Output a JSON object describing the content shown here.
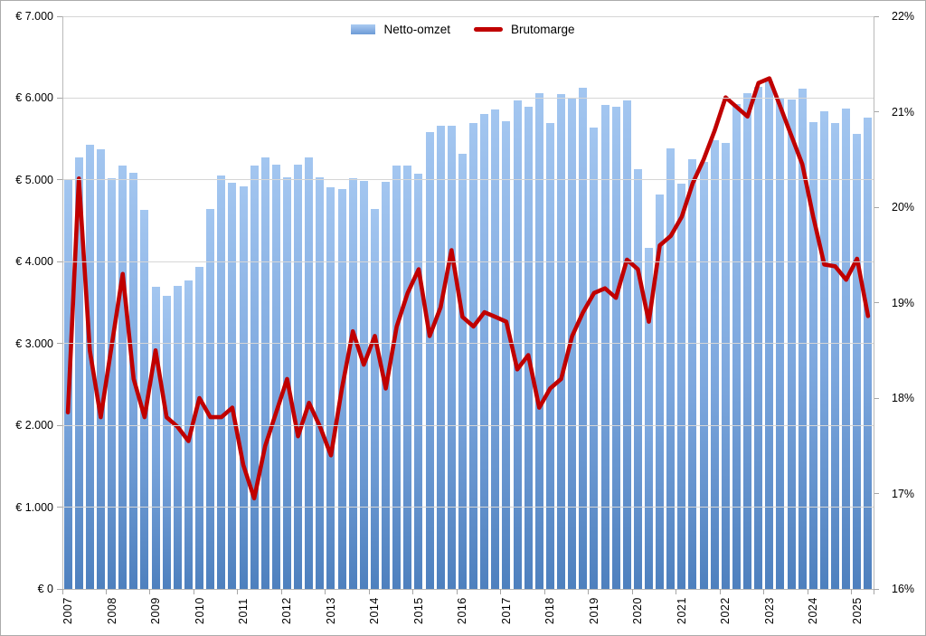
{
  "chart_data": {
    "type": "bar+line",
    "title": "",
    "legend": {
      "bar_label": "Netto-omzet",
      "line_label": "Brutomarge"
    },
    "categories_years": [
      "2007",
      "2008",
      "2009",
      "2010",
      "2011",
      "2012",
      "2013",
      "2014",
      "2015",
      "2016",
      "2017",
      "2018",
      "2019",
      "2020",
      "2021",
      "2022",
      "2023",
      "2024",
      "2025"
    ],
    "x_note": "quarterly data, 4 bars per year, 2025 has only Q1-Q2 (74 points total)",
    "series": [
      {
        "name": "Netto-omzet",
        "type": "bar",
        "axis": "left",
        "unit": "EUR million, axis formatted as € x.000",
        "values": [
          5000,
          5280,
          5430,
          5370,
          5020,
          5180,
          5090,
          4630,
          3690,
          3580,
          3710,
          3770,
          3940,
          4640,
          5050,
          4970,
          4920,
          5170,
          5270,
          5190,
          5030,
          5190,
          5280,
          5030,
          4910,
          4890,
          5020,
          4990,
          4650,
          4980,
          5180,
          5170,
          5080,
          5580,
          5660,
          5660,
          5320,
          5690,
          5810,
          5860,
          5720,
          5970,
          5890,
          6060,
          5690,
          6050,
          5990,
          6130,
          5640,
          5920,
          5890,
          5970,
          5130,
          4170,
          4820,
          5390,
          4950,
          5250,
          5220,
          5480,
          5450,
          5930,
          6060,
          6140,
          6200,
          6000,
          5980,
          6110,
          5710,
          5840,
          5700,
          5870,
          5560,
          5760
        ]
      },
      {
        "name": "Brutomarge",
        "type": "line",
        "axis": "right",
        "unit": "percent",
        "values": [
          17.85,
          20.3,
          18.5,
          17.8,
          18.55,
          19.3,
          18.2,
          17.8,
          18.5,
          17.8,
          17.7,
          17.55,
          18.0,
          17.8,
          17.8,
          17.9,
          17.3,
          16.95,
          17.5,
          17.85,
          18.2,
          17.6,
          17.95,
          17.7,
          17.4,
          18.1,
          18.7,
          18.35,
          18.65,
          18.1,
          18.75,
          19.1,
          19.35,
          18.65,
          18.95,
          19.55,
          18.85,
          18.75,
          18.9,
          18.85,
          18.8,
          18.3,
          18.45,
          17.9,
          18.1,
          18.2,
          18.65,
          18.9,
          19.1,
          19.15,
          19.05,
          19.45,
          19.35,
          18.8,
          19.6,
          19.7,
          19.9,
          20.25,
          20.5,
          20.8,
          21.15,
          21.05,
          20.95,
          21.3,
          21.35,
          21.05,
          20.75,
          20.45,
          19.9,
          19.4,
          19.38,
          19.24,
          19.46,
          18.86
        ]
      }
    ],
    "y_left": {
      "min": 0,
      "max": 7000,
      "step": 1000,
      "tick_labels_top_to_bottom": [
        "€ 7.000",
        "€ 6.000",
        "€ 5.000",
        "€ 4.000",
        "€ 3.000",
        "€ 2.000",
        "€ 1.000",
        "€ 0"
      ]
    },
    "y_right": {
      "min": 16,
      "max": 22,
      "step": 1,
      "tick_labels_top_to_bottom": [
        "22%",
        "21%",
        "20%",
        "19%",
        "18%",
        "17%",
        "16%"
      ]
    },
    "grid": "horizontal gridlines at left-axis steps only",
    "legend_position": "top-center",
    "colors": {
      "bar_top": "#a3c6f0",
      "bar_bottom": "#4e80be",
      "line": "#c00000",
      "gridline": "#d6d6d6",
      "axis": "#b9b9b9",
      "text": "#000000",
      "background": "#ffffff"
    }
  }
}
